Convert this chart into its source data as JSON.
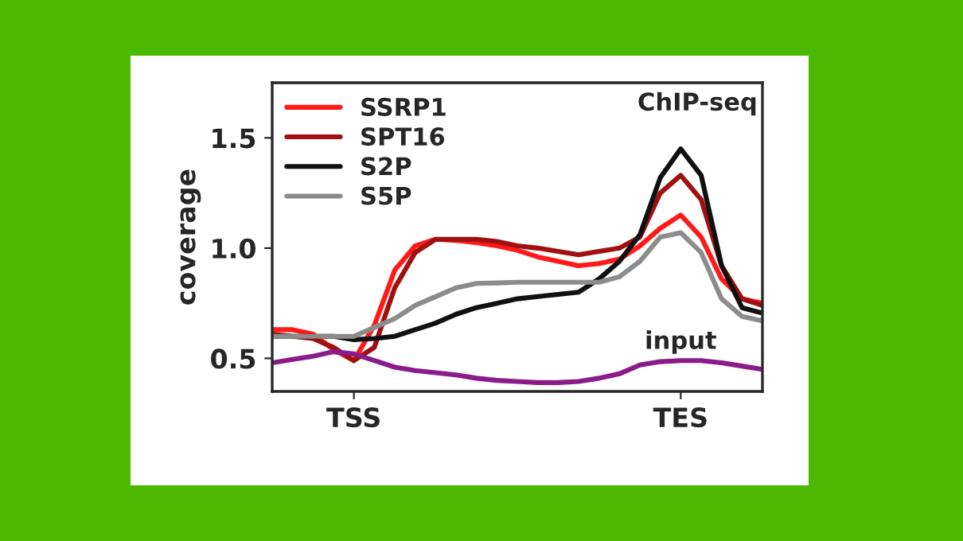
{
  "chart_data": {
    "type": "line",
    "ylabel": "coverage",
    "categories": [
      null,
      null,
      null,
      null,
      "TSS",
      null,
      null,
      null,
      null,
      null,
      null,
      null,
      null,
      null,
      null,
      null,
      null,
      null,
      null,
      null,
      "TES",
      null,
      null,
      null,
      null
    ],
    "ylim": [
      0.35,
      1.75
    ],
    "yticks": [
      0.5,
      {
        "value": 1.0,
        "label": "1.0"
      },
      1.5
    ],
    "grid": false,
    "legend": "top left",
    "marker": "none",
    "line_style": "solid",
    "annotations": [
      "ChIP-seq",
      {
        "text": "input",
        "x": "TES",
        "y": 0.49
      }
    ],
    "series": [
      {
        "name": "SSRP1",
        "color": "#ff1a1a",
        "values": [
          0.63,
          0.63,
          0.61,
          0.54,
          0.49,
          0.65,
          0.9,
          1.01,
          1.04,
          1.035,
          1.025,
          1.01,
          0.99,
          0.96,
          0.94,
          0.92,
          0.93,
          0.95,
          1.01,
          1.09,
          1.15,
          1.05,
          0.86,
          0.77,
          0.75
        ]
      },
      {
        "name": "SPT16",
        "color": "#a01010",
        "values": [
          0.61,
          0.6,
          0.59,
          0.55,
          0.49,
          0.55,
          0.82,
          0.98,
          1.04,
          1.04,
          1.04,
          1.03,
          1.01,
          1.0,
          0.985,
          0.97,
          0.985,
          1.0,
          1.05,
          1.25,
          1.33,
          1.22,
          0.92,
          0.77,
          0.74
        ]
      },
      {
        "name": "S2P",
        "color": "#101010",
        "values": [
          0.6,
          0.6,
          0.6,
          0.6,
          0.585,
          0.59,
          0.6,
          0.63,
          0.66,
          0.7,
          0.73,
          0.75,
          0.77,
          0.78,
          0.79,
          0.8,
          0.86,
          0.94,
          1.06,
          1.32,
          1.45,
          1.33,
          0.92,
          0.73,
          0.705
        ]
      },
      {
        "name": "S5P",
        "color": "#8c8c8c",
        "values": [
          0.6,
          0.6,
          0.6,
          0.6,
          0.6,
          0.64,
          0.68,
          0.74,
          0.78,
          0.82,
          0.84,
          0.842,
          0.845,
          0.845,
          0.845,
          0.845,
          0.845,
          0.87,
          0.94,
          1.05,
          1.07,
          0.98,
          0.77,
          0.69,
          0.67
        ]
      },
      {
        "color": "#8b1a8b",
        "values": [
          0.48,
          0.495,
          0.51,
          0.53,
          0.52,
          0.49,
          0.46,
          0.445,
          0.435,
          0.425,
          0.41,
          0.4,
          0.395,
          0.39,
          0.39,
          0.395,
          0.41,
          0.43,
          0.47,
          0.485,
          0.49,
          0.49,
          0.48,
          0.465,
          0.45
        ]
      }
    ]
  }
}
